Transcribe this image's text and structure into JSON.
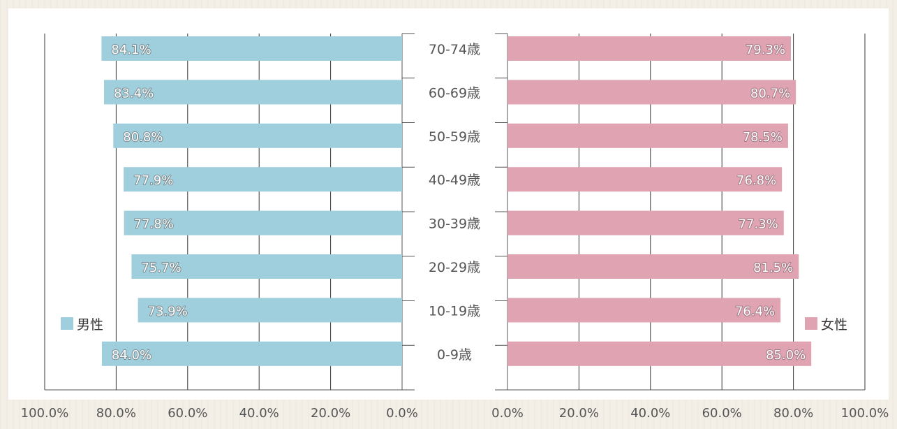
{
  "chart_data": [
    {
      "type": "bar",
      "orientation": "horizontal",
      "direction": "right-to-left",
      "categories": [
        "70-74歳",
        "60-69歳",
        "50-59歳",
        "40-49歳",
        "30-39歳",
        "20-29歳",
        "10-19歳",
        "0-9歳"
      ],
      "series": [
        {
          "name": "男性",
          "values": [
            84.1,
            83.4,
            80.8,
            77.9,
            77.8,
            75.7,
            73.9,
            84.0
          ]
        }
      ],
      "value_labels": [
        "84.1%",
        "83.4%",
        "80.8%",
        "77.9%",
        "77.8%",
        "75.7%",
        "73.9%",
        "84.0%"
      ],
      "xlim": [
        0,
        100
      ],
      "x_ticks": [
        "100.0%",
        "80.0%",
        "60.0%",
        "40.0%",
        "20.0%",
        "0.0%"
      ],
      "grid": true,
      "legend_position": "bottom-left",
      "color": "#9fcfdc"
    },
    {
      "type": "bar",
      "orientation": "horizontal",
      "direction": "left-to-right",
      "categories": [
        "70-74歳",
        "60-69歳",
        "50-59歳",
        "40-49歳",
        "30-39歳",
        "20-29歳",
        "10-19歳",
        "0-9歳"
      ],
      "series": [
        {
          "name": "女性",
          "values": [
            79.3,
            80.7,
            78.5,
            76.8,
            77.3,
            81.5,
            76.4,
            85.0
          ]
        }
      ],
      "value_labels": [
        "79.3%",
        "80.7%",
        "78.5%",
        "76.8%",
        "77.3%",
        "81.5%",
        "76.4%",
        "85.0%"
      ],
      "xlim": [
        0,
        100
      ],
      "x_ticks": [
        "0.0%",
        "20.0%",
        "40.0%",
        "60.0%",
        "80.0%",
        "100.0%"
      ],
      "grid": true,
      "legend_position": "bottom-right",
      "color": "#e0a3b1"
    }
  ],
  "colors": {
    "male": "#9fcfdc",
    "female": "#e0a3b1",
    "grid": "#333333",
    "axis": "#555555"
  }
}
